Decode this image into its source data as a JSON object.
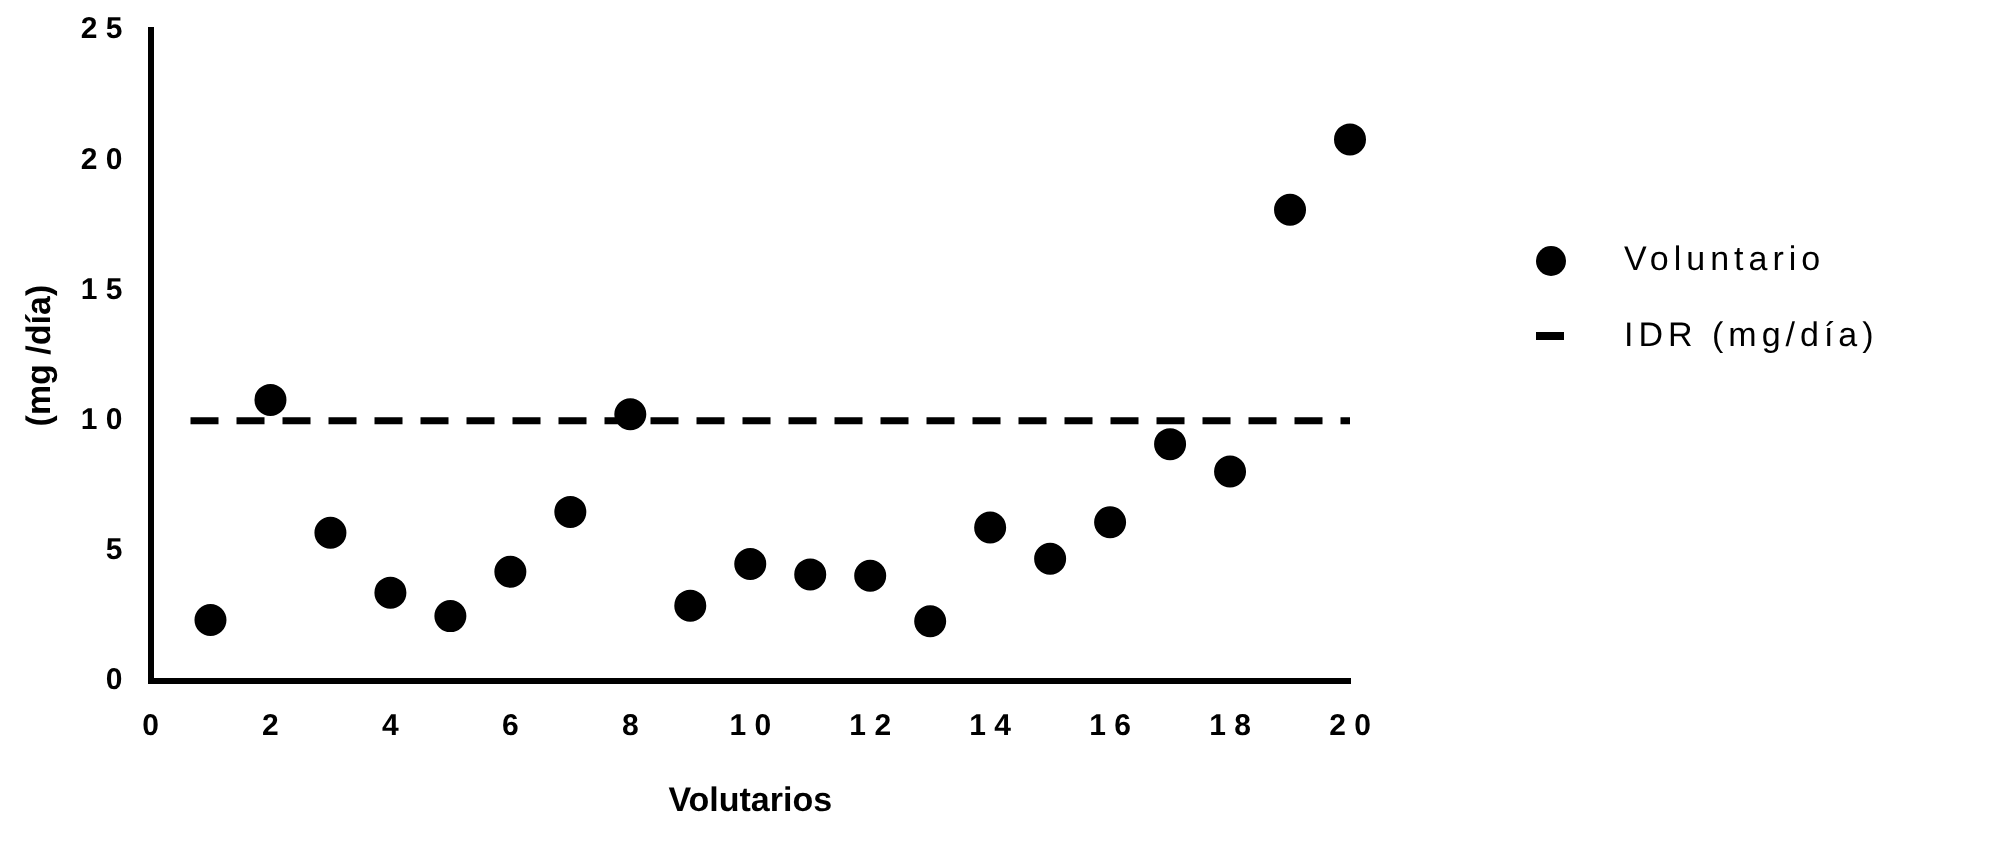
{
  "chart_data": {
    "type": "scatter",
    "xlabel": "Volutarios",
    "ylabel": "(mg /día)",
    "x": [
      1,
      2,
      3,
      4,
      5,
      6,
      7,
      8,
      9,
      10,
      11,
      12,
      13,
      14,
      15,
      16,
      17,
      18,
      19,
      20
    ],
    "series": [
      {
        "name": "Voluntario",
        "color": "#000000",
        "values": [
          2.35,
          10.8,
          5.7,
          3.4,
          2.5,
          4.2,
          6.5,
          10.25,
          2.9,
          4.5,
          4.1,
          4.05,
          2.3,
          5.9,
          4.7,
          6.1,
          9.1,
          8.05,
          18.1,
          20.8
        ]
      }
    ],
    "ref_lines": [
      {
        "axis": "y",
        "value": 10,
        "label": "IDR (mg/día)",
        "color": "#000000",
        "line_style": "dashed"
      }
    ],
    "xlim": [
      0,
      20
    ],
    "xticks": [
      0,
      2,
      4,
      6,
      8,
      10,
      12,
      14,
      16,
      18,
      20
    ],
    "ylim": [
      0,
      25
    ],
    "yticks": [
      0,
      5,
      10,
      15,
      20,
      25
    ],
    "grid": false,
    "legend": "right",
    "marker": "circle"
  }
}
